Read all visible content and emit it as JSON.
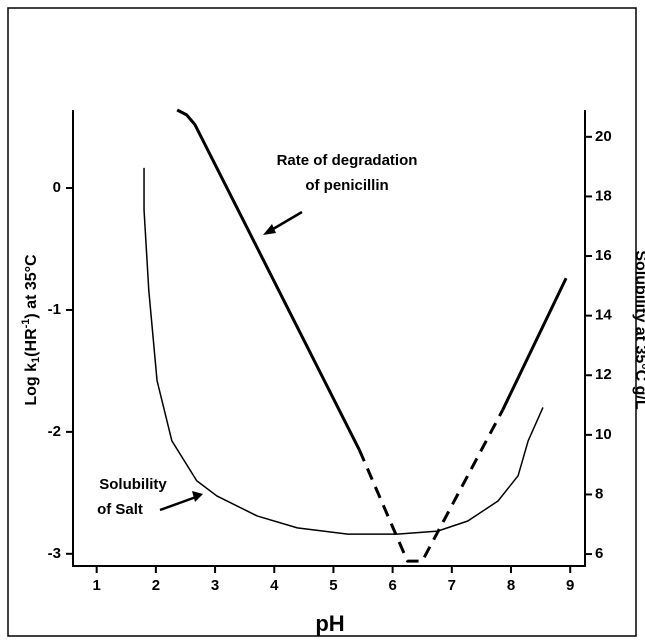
{
  "chart_data": {
    "type": "line",
    "x_label": "pH",
    "y_label_parts": [
      "Log k",
      "1",
      "(HR",
      "-1",
      ") at 35°C"
    ],
    "y2_label": "Solubility at 35°C g/L",
    "annotations": [
      {
        "lines": [
          "Rate of degradation",
          "of penicillin"
        ]
      },
      {
        "lines": [
          "Solubility",
          "of Salt"
        ]
      }
    ],
    "xlim": [
      0.6,
      9.25
    ],
    "xticks": [
      1,
      2,
      3,
      4,
      5,
      6,
      7,
      8,
      9
    ],
    "ylim": [
      -3.1,
      0.64
    ],
    "yticks": [
      0,
      -1,
      -2,
      -3
    ],
    "y2lim": [
      5.6,
      20.9
    ],
    "y2ticks": [
      6,
      8,
      10,
      12,
      14,
      16,
      18,
      20
    ],
    "series": [
      {
        "color": "#000",
        "dashed": false,
        "width": 3,
        "axis": "y",
        "x": [
          2.36,
          2.52,
          2.66,
          5.44
        ],
        "values": [
          0.64,
          0.6,
          0.52,
          -2.15
        ]
      },
      {
        "color": "#000",
        "dashed": true,
        "width": 3,
        "axis": "y",
        "x": [
          5.44,
          6.25,
          6.5,
          7.86
        ],
        "values": [
          -2.15,
          -3.06,
          -3.06,
          -1.82
        ]
      },
      {
        "color": "#000",
        "dashed": false,
        "width": 3,
        "axis": "y",
        "x": [
          7.86,
          8.93
        ],
        "values": [
          -1.82,
          -0.74
        ]
      },
      {
        "color": "#000",
        "dashed": false,
        "width": 1.5,
        "axis": "y2",
        "x": [
          1.8,
          1.8,
          1.88,
          2.02,
          2.27,
          2.69,
          3.03,
          3.71,
          4.39,
          5.24,
          6.08,
          6.76,
          7.27,
          7.78,
          8.12,
          8.29,
          8.54
        ],
        "values": [
          18.96,
          17.55,
          14.86,
          11.82,
          9.8,
          8.46,
          7.95,
          7.28,
          6.88,
          6.67,
          6.67,
          6.77,
          7.11,
          7.78,
          8.63,
          9.8,
          10.92
        ]
      }
    ]
  }
}
